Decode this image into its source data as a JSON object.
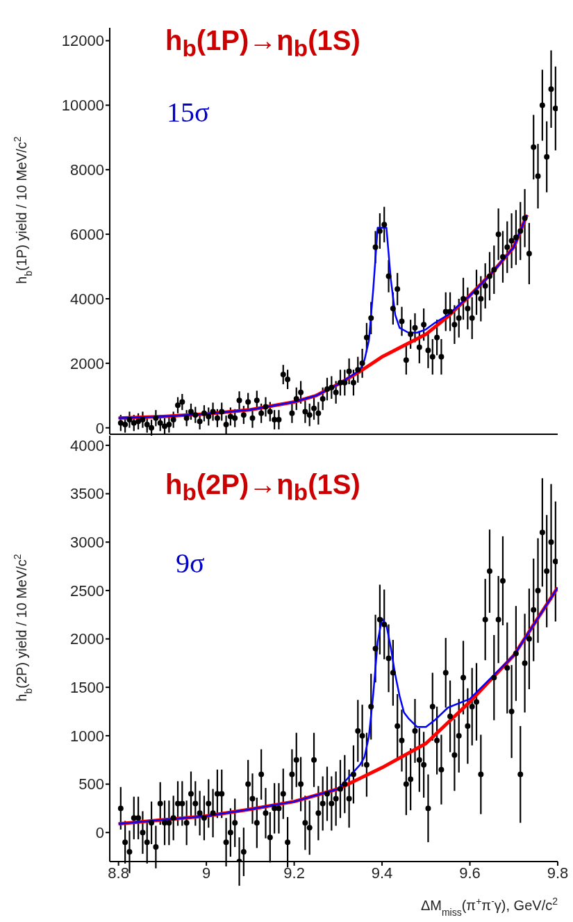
{
  "chart_data": [
    {
      "type": "scatter",
      "ylabel": "h$_{b}$(1P) yield / 10 MeV/c$^{2}$",
      "annotations": [
        "h$_{b}$(1P)→η$_{b}$(1S)",
        "15σ"
      ],
      "xlim": [
        8.78,
        9.8
      ],
      "xticks": [
        8.8,
        9,
        9.2,
        9.4,
        9.6,
        9.8
      ],
      "ylim": [
        -200,
        12400
      ],
      "yticks": [
        0,
        2000,
        4000,
        6000,
        8000,
        10000,
        12000
      ],
      "tick_labels": "y",
      "series": [
        {
          "type": "scatter",
          "marker": "circle",
          "color": "#000000",
          "x": [
            8.805,
            8.815,
            8.825,
            8.835,
            8.845,
            8.855,
            8.865,
            8.875,
            8.885,
            8.895,
            8.905,
            8.915,
            8.925,
            8.935,
            8.945,
            8.955,
            8.965,
            8.975,
            8.985,
            8.995,
            9.005,
            9.015,
            9.025,
            9.035,
            9.045,
            9.055,
            9.065,
            9.075,
            9.085,
            9.095,
            9.105,
            9.115,
            9.125,
            9.135,
            9.145,
            9.155,
            9.165,
            9.175,
            9.185,
            9.195,
            9.205,
            9.215,
            9.225,
            9.235,
            9.245,
            9.255,
            9.265,
            9.275,
            9.285,
            9.295,
            9.305,
            9.315,
            9.325,
            9.335,
            9.345,
            9.355,
            9.365,
            9.375,
            9.385,
            9.395,
            9.405,
            9.415,
            9.425,
            9.435,
            9.445,
            9.455,
            9.465,
            9.475,
            9.485,
            9.495,
            9.505,
            9.515,
            9.525,
            9.535,
            9.545,
            9.555,
            9.565,
            9.575,
            9.585,
            9.595,
            9.605,
            9.615,
            9.625,
            9.635,
            9.645,
            9.655,
            9.665,
            9.675,
            9.685,
            9.695,
            9.705,
            9.715,
            9.725,
            9.735,
            9.745,
            9.755,
            9.765,
            9.775,
            9.785,
            9.795
          ],
          "values": [
            150,
            100,
            250,
            150,
            200,
            250,
            100,
            0,
            300,
            150,
            50,
            100,
            250,
            700,
            800,
            300,
            500,
            400,
            200,
            450,
            350,
            500,
            300,
            500,
            100,
            350,
            300,
            850,
            400,
            800,
            300,
            850,
            450,
            650,
            500,
            250,
            250,
            1650,
            1500,
            450,
            900,
            1100,
            500,
            400,
            600,
            450,
            900,
            1200,
            1250,
            1100,
            1400,
            1400,
            1750,
            1400,
            1800,
            2000,
            2800,
            3400,
            5600,
            6100,
            6300,
            4700,
            3700,
            4300,
            3300,
            2100,
            2900,
            3100,
            2500,
            3200,
            2400,
            2200,
            2800,
            2200,
            3600,
            3600,
            3200,
            3400,
            4000,
            3700,
            3400,
            4200,
            4000,
            4400,
            4700,
            4900,
            6000,
            5300,
            5600,
            5800,
            5900,
            6100,
            6500,
            5400,
            8700,
            7800,
            10000,
            8400,
            10500,
            9900
          ],
          "errors": [
            250,
            250,
            250,
            250,
            250,
            250,
            250,
            250,
            250,
            250,
            250,
            250,
            250,
            250,
            250,
            250,
            250,
            250,
            250,
            250,
            280,
            280,
            280,
            280,
            280,
            280,
            280,
            280,
            280,
            280,
            300,
            300,
            300,
            300,
            300,
            300,
            300,
            300,
            300,
            300,
            350,
            350,
            350,
            350,
            350,
            350,
            350,
            350,
            350,
            350,
            400,
            400,
            400,
            400,
            400,
            450,
            450,
            500,
            500,
            550,
            550,
            500,
            500,
            500,
            450,
            450,
            450,
            450,
            500,
            500,
            550,
            550,
            550,
            550,
            600,
            600,
            600,
            600,
            650,
            650,
            650,
            700,
            700,
            700,
            750,
            750,
            800,
            800,
            800,
            850,
            850,
            900,
            900,
            950,
            1000,
            1000,
            1100,
            1100,
            1200,
            1300
          ]
        },
        {
          "type": "line",
          "color": "#ff0000",
          "x": [
            8.8,
            8.9,
            9.0,
            9.1,
            9.2,
            9.25,
            9.3,
            9.35,
            9.4,
            9.45,
            9.5,
            9.55,
            9.6,
            9.65,
            9.7,
            9.73
          ],
          "values": [
            300,
            350,
            430,
            560,
            800,
            1000,
            1350,
            1750,
            2200,
            2550,
            2900,
            3450,
            4100,
            4800,
            5600,
            6600
          ]
        },
        {
          "type": "line",
          "color": "#0000ff",
          "x": [
            8.8,
            8.9,
            9.0,
            9.1,
            9.2,
            9.25,
            9.3,
            9.34,
            9.35,
            9.36,
            9.37,
            9.38,
            9.39,
            9.41,
            9.42,
            9.43,
            9.44,
            9.46,
            9.48,
            9.5,
            9.52,
            9.55,
            9.6,
            9.65,
            9.7,
            9.73
          ],
          "values": [
            300,
            350,
            430,
            560,
            800,
            1000,
            1350,
            1700,
            1800,
            2100,
            2700,
            4300,
            6200,
            6200,
            4600,
            3500,
            3100,
            2950,
            2950,
            3050,
            3250,
            3500,
            4100,
            4800,
            5600,
            6600
          ]
        }
      ]
    },
    {
      "type": "scatter",
      "xlabel": "ΔM$_{miss}$(π$^{+}$π$^{-}$γ), GeV/c$^{2}$",
      "ylabel": "h$_{b}$(2P) yield / 10 MeV/c$^{2}$",
      "annotations": [
        "h$_{b}$(2P)→η$_{b}$(1S)",
        "9σ"
      ],
      "xlim": [
        8.78,
        9.8
      ],
      "xticks": [
        8.8,
        9,
        9.2,
        9.4,
        9.6,
        9.8
      ],
      "ylim": [
        -300,
        4100
      ],
      "yticks": [
        0,
        500,
        1000,
        1500,
        2000,
        2500,
        3000,
        3500,
        4000
      ],
      "series": [
        {
          "type": "scatter",
          "marker": "circle",
          "color": "#000000",
          "x": [
            8.805,
            8.815,
            8.825,
            8.835,
            8.845,
            8.855,
            8.865,
            8.875,
            8.885,
            8.895,
            8.905,
            8.915,
            8.925,
            8.935,
            8.945,
            8.955,
            8.965,
            8.975,
            8.985,
            8.995,
            9.005,
            9.015,
            9.025,
            9.035,
            9.045,
            9.055,
            9.065,
            9.075,
            9.085,
            9.095,
            9.105,
            9.115,
            9.125,
            9.135,
            9.145,
            9.155,
            9.165,
            9.175,
            9.185,
            9.195,
            9.205,
            9.215,
            9.225,
            9.235,
            9.245,
            9.255,
            9.265,
            9.275,
            9.285,
            9.295,
            9.305,
            9.315,
            9.325,
            9.335,
            9.345,
            9.355,
            9.365,
            9.375,
            9.385,
            9.395,
            9.405,
            9.415,
            9.425,
            9.435,
            9.445,
            9.455,
            9.465,
            9.475,
            9.485,
            9.495,
            9.505,
            9.515,
            9.525,
            9.535,
            9.545,
            9.555,
            9.565,
            9.575,
            9.585,
            9.595,
            9.605,
            9.615,
            9.625,
            9.635,
            9.645,
            9.655,
            9.665,
            9.675,
            9.685,
            9.695,
            9.705,
            9.715,
            9.725,
            9.735,
            9.745,
            9.755,
            9.765,
            9.775,
            9.785,
            9.795
          ],
          "values": [
            250,
            -100,
            -200,
            150,
            150,
            0,
            -100,
            100,
            -150,
            300,
            100,
            100,
            150,
            300,
            300,
            100,
            400,
            300,
            200,
            150,
            300,
            200,
            400,
            400,
            -100,
            0,
            100,
            -300,
            -200,
            500,
            350,
            100,
            600,
            200,
            -50,
            250,
            250,
            400,
            -100,
            600,
            750,
            500,
            100,
            50,
            750,
            200,
            300,
            400,
            300,
            350,
            450,
            500,
            350,
            600,
            1050,
            1000,
            700,
            1300,
            1900,
            2200,
            2150,
            1800,
            1650,
            1100,
            950,
            500,
            550,
            1050,
            750,
            700,
            250,
            1300,
            950,
            650,
            1650,
            1200,
            800,
            1000,
            1600,
            1100,
            1300,
            1350,
            600,
            2200,
            2700,
            1600,
            2200,
            2600,
            1700,
            1250,
            1850,
            600,
            1750,
            2000,
            2300,
            2500,
            3100,
            2700,
            3000,
            2800
          ],
          "errors": [
            220,
            220,
            220,
            220,
            220,
            220,
            220,
            220,
            220,
            220,
            230,
            230,
            230,
            230,
            230,
            230,
            230,
            230,
            230,
            230,
            250,
            250,
            250,
            250,
            250,
            250,
            250,
            250,
            250,
            250,
            260,
            260,
            260,
            260,
            260,
            260,
            260,
            260,
            260,
            260,
            280,
            280,
            280,
            280,
            280,
            280,
            280,
            280,
            280,
            280,
            300,
            300,
            300,
            300,
            320,
            320,
            330,
            340,
            350,
            360,
            360,
            350,
            340,
            330,
            320,
            320,
            320,
            330,
            330,
            340,
            350,
            350,
            350,
            360,
            360,
            370,
            370,
            380,
            380,
            390,
            400,
            400,
            410,
            420,
            430,
            440,
            450,
            460,
            470,
            480,
            490,
            500,
            510,
            520,
            530,
            540,
            560,
            580,
            600,
            620
          ]
        },
        {
          "type": "line",
          "color": "#ff0000",
          "x": [
            8.8,
            8.9,
            9.0,
            9.1,
            9.2,
            9.3,
            9.4,
            9.5,
            9.6,
            9.7,
            9.8
          ],
          "values": [
            90,
            130,
            170,
            240,
            320,
            450,
            670,
            920,
            1350,
            1830,
            2530
          ]
        },
        {
          "type": "line",
          "color": "#0000ff",
          "x": [
            8.8,
            8.9,
            9.0,
            9.1,
            9.2,
            9.3,
            9.35,
            9.36,
            9.37,
            9.38,
            9.39,
            9.4,
            9.41,
            9.42,
            9.43,
            9.44,
            9.45,
            9.46,
            9.48,
            9.5,
            9.52,
            9.55,
            9.6,
            9.7,
            9.8
          ],
          "values": [
            90,
            130,
            170,
            240,
            320,
            450,
            700,
            780,
            990,
            1430,
            1970,
            2210,
            2140,
            1910,
            1630,
            1410,
            1240,
            1180,
            1090,
            1090,
            1160,
            1290,
            1380,
            1830,
            2530
          ]
        }
      ]
    }
  ]
}
